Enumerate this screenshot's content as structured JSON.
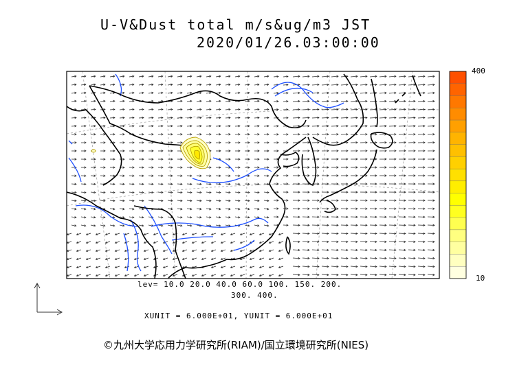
{
  "title": {
    "line1": "U-V&Dust total m/s&ug/m3 JST",
    "line2": "2020/01/26.03:00:00"
  },
  "levels": {
    "line1": "lev= 10.0 20.0 40.0 60.0 100. 150. 200.",
    "line2": "300. 400."
  },
  "units_text": "XUNIT = 6.000E+01, YUNIT = 6.000E+01",
  "colorbar": {
    "max_label": "400",
    "min_label": "10",
    "colors": [
      "#ff5000",
      "#ff6400",
      "#ff7800",
      "#ff8c00",
      "#ffa000",
      "#ffb400",
      "#ffc000",
      "#ffd000",
      "#ffe000",
      "#ffee00",
      "#ffff00",
      "#ffff20",
      "#ffff50",
      "#ffff80",
      "#ffffa0",
      "#ffffc0",
      "#ffffe0"
    ]
  },
  "credit": "©九州大学応用力学研究所(RIAM)/国立環境研究所(NIES)",
  "colors": {
    "coast": "#000000",
    "river": "#1e50ff",
    "dust": "#c8b400",
    "grid": "#888888"
  }
}
